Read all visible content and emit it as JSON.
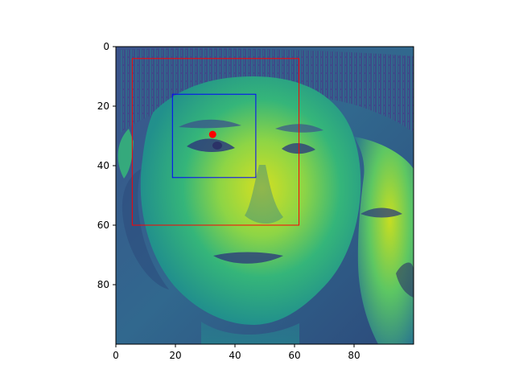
{
  "figure": {
    "image": {
      "description_free": true,
      "colormap": "viridis",
      "array_shape": [
        100,
        100
      ]
    },
    "x_axis": {
      "ticks": [
        0,
        20,
        40,
        60,
        80
      ],
      "labels": [
        "0",
        "20",
        "40",
        "60",
        "80"
      ]
    },
    "y_axis": {
      "ticks": [
        0,
        20,
        40,
        60,
        80
      ],
      "labels": [
        "0",
        "20",
        "40",
        "60",
        "80"
      ],
      "inverted": true
    },
    "overlays": {
      "outer_box": {
        "color": "#ff0000",
        "x0": 5.5,
        "y0": 4,
        "x1": 61.5,
        "y1": 60
      },
      "inner_box": {
        "color": "#0000ff",
        "x0": 19,
        "y0": 16,
        "x1": 47,
        "y1": 44
      },
      "points": [
        {
          "color": "#ff0000",
          "x": 32.5,
          "y": 29.5
        }
      ]
    }
  }
}
